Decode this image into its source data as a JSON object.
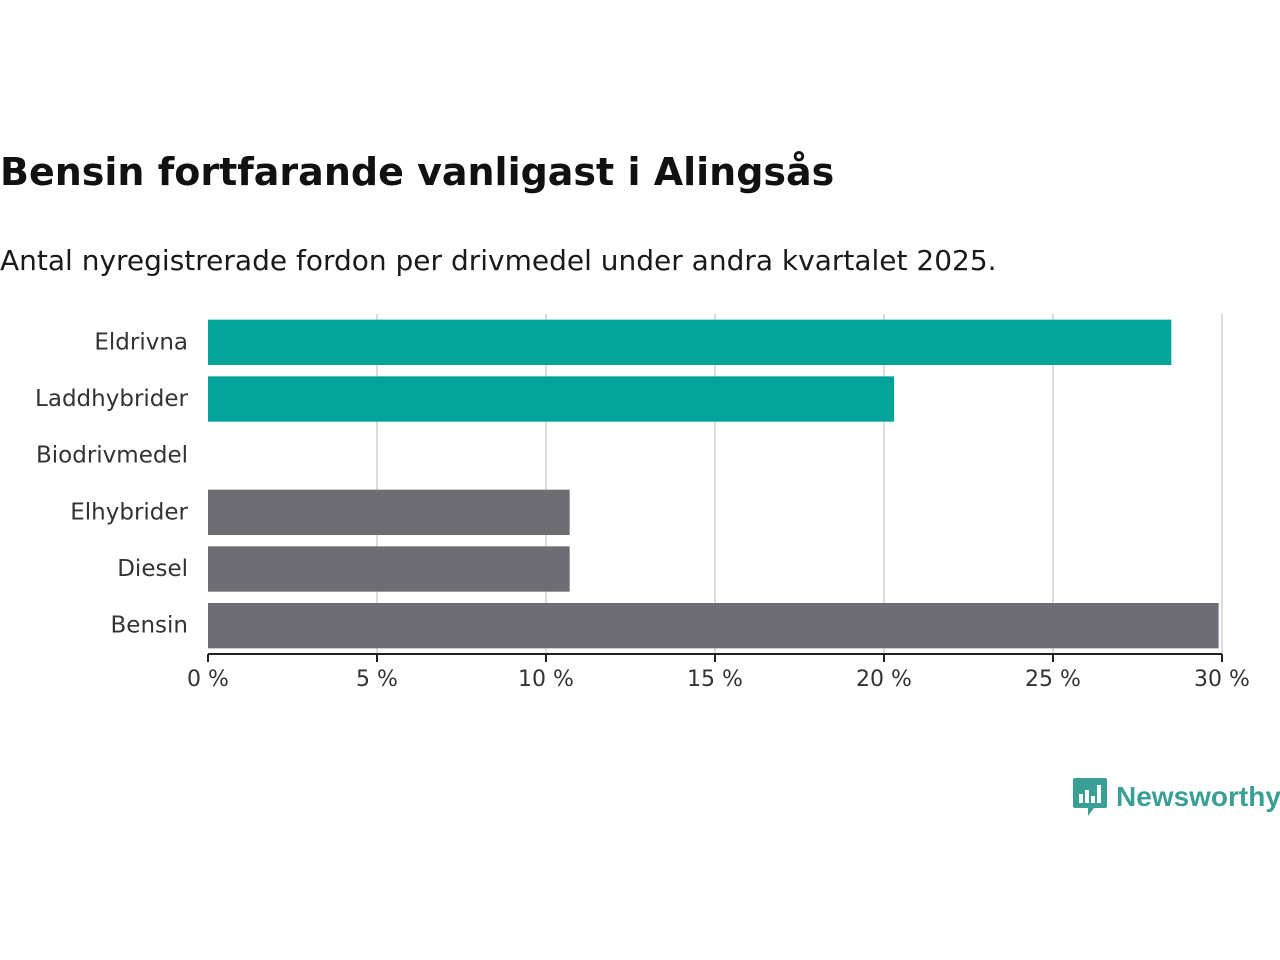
{
  "header": {
    "title": "Bensin fortfarande vanligast i Alingsås",
    "subtitle": "Antal nyregistrerade fordon per drivmedel under andra kvartalet 2025."
  },
  "brand": {
    "name": "Newsworthy",
    "color": "#3aa095",
    "icon": "bar-chart-speech-bubble-icon"
  },
  "colors": {
    "highlight": "#02a399",
    "default": "#6e6d73",
    "grid": "#dcdcdc",
    "axis": "#222222"
  },
  "chart_data": {
    "type": "bar",
    "orientation": "horizontal",
    "categories": [
      "Eldrivna",
      "Laddhybrider",
      "Biodrivmedel",
      "Elhybrider",
      "Diesel",
      "Bensin"
    ],
    "values": [
      28.5,
      20.3,
      0,
      10.7,
      10.7,
      29.9
    ],
    "highlight": [
      true,
      true,
      false,
      false,
      false,
      false
    ],
    "x_ticks": [
      0,
      5,
      10,
      15,
      20,
      25,
      30
    ],
    "tick_labels": [
      "0 %",
      "5 %",
      "10 %",
      "15 %",
      "20 %",
      "25 %",
      "30 %"
    ],
    "xlim": [
      0,
      30
    ],
    "grid": true,
    "legend": "none"
  }
}
